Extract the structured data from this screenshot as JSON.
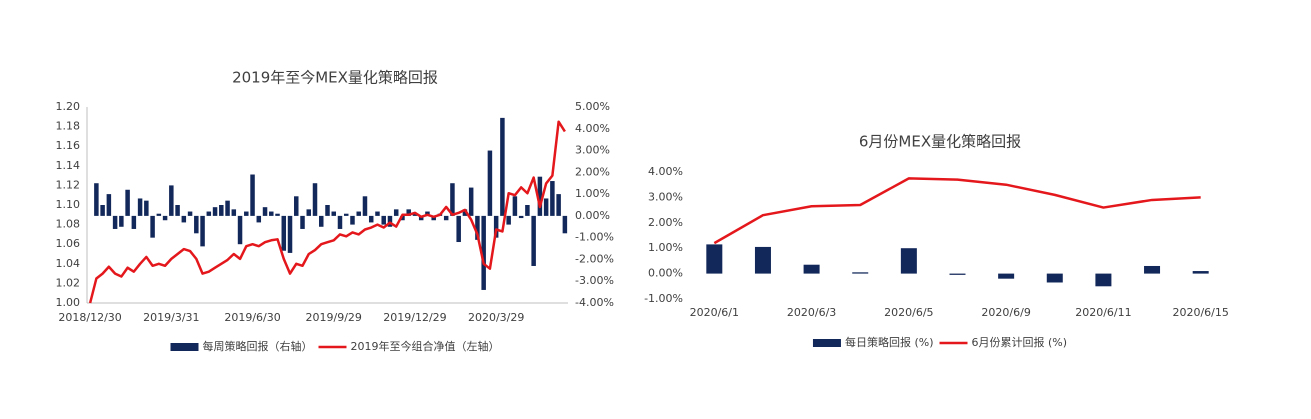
{
  "chart_data": [
    {
      "type": "combo",
      "title": "2019年至今MEX量化策略回报",
      "categories": [
        "2018/12/30",
        null,
        null,
        null,
        null,
        null,
        null,
        null,
        null,
        null,
        null,
        null,
        null,
        "2019/3/31",
        null,
        null,
        null,
        null,
        null,
        null,
        null,
        null,
        null,
        null,
        null,
        null,
        "2019/6/30",
        null,
        null,
        null,
        null,
        null,
        null,
        null,
        null,
        null,
        null,
        null,
        null,
        "2019/9/29",
        null,
        null,
        null,
        null,
        null,
        null,
        null,
        null,
        null,
        null,
        null,
        null,
        "2019/12/29",
        null,
        null,
        null,
        null,
        null,
        null,
        null,
        null,
        null,
        null,
        null,
        null,
        "2020/3/29",
        null,
        null,
        null,
        null,
        null,
        null,
        null,
        null,
        null,
        null,
        null
      ],
      "series": [
        {
          "name": "每周策略回报（右轴）",
          "type": "bar",
          "axis": "y2",
          "color": "#13285a",
          "values": [
            0,
            1.5,
            0.5,
            1.0,
            -0.6,
            -0.5,
            1.2,
            -0.6,
            0.8,
            0.7,
            -1.0,
            0.1,
            -0.2,
            1.4,
            0.5,
            -0.3,
            0.2,
            -0.8,
            -1.4,
            0.2,
            0.4,
            0.5,
            0.7,
            0.3,
            -1.3,
            0.2,
            1.9,
            -0.3,
            0.4,
            0.2,
            0.1,
            -1.6,
            -1.7,
            0.9,
            -0.6,
            0.3,
            1.5,
            -0.5,
            0.5,
            0.2,
            -0.6,
            0.1,
            -0.4,
            0.2,
            0.9,
            -0.3,
            0.2,
            -0.4,
            -0.5,
            0.3,
            -0.2,
            0.3,
            0.1,
            -0.2,
            0.2,
            -0.2,
            0.1,
            -0.2,
            1.5,
            -1.2,
            0.3,
            1.3,
            -1.1,
            -3.4,
            3.0,
            -1.0,
            4.5,
            -0.4,
            0.9,
            -0.1,
            0.5,
            -2.3,
            1.8,
            0.8,
            1.6,
            1.0,
            -0.8
          ]
        },
        {
          "name": "2019年至今组合净值（左轴）",
          "type": "line",
          "axis": "y",
          "color": "#e4181c",
          "values": [
            1.0,
            1.025,
            1.03,
            1.037,
            1.03,
            1.027,
            1.036,
            1.032,
            1.04,
            1.047,
            1.038,
            1.04,
            1.038,
            1.045,
            1.05,
            1.055,
            1.053,
            1.045,
            1.03,
            1.032,
            1.036,
            1.04,
            1.044,
            1.05,
            1.045,
            1.058,
            1.06,
            1.058,
            1.062,
            1.064,
            1.065,
            1.045,
            1.03,
            1.04,
            1.038,
            1.05,
            1.054,
            1.06,
            1.062,
            1.064,
            1.07,
            1.068,
            1.072,
            1.07,
            1.075,
            1.077,
            1.08,
            1.077,
            1.082,
            1.078,
            1.09,
            1.09,
            1.092,
            1.088,
            1.09,
            1.088,
            1.09,
            1.098,
            1.09,
            1.092,
            1.095,
            1.085,
            1.07,
            1.04,
            1.035,
            1.075,
            1.073,
            1.112,
            1.11,
            1.118,
            1.112,
            1.128,
            1.098,
            1.122,
            1.13,
            1.185,
            1.175
          ]
        }
      ],
      "ylim": [
        1.0,
        1.2
      ],
      "yticks": [
        {
          "value": 1.0,
          "label": "1.00"
        },
        {
          "value": 1.02,
          "label": "1.02"
        },
        {
          "value": 1.04,
          "label": "1.04"
        },
        {
          "value": 1.06,
          "label": "1.06"
        },
        {
          "value": 1.08,
          "label": "1.08"
        },
        {
          "value": 1.1,
          "label": "1.10"
        },
        {
          "value": 1.12,
          "label": "1.12"
        },
        {
          "value": 1.14,
          "label": "1.14"
        },
        {
          "value": 1.16,
          "label": "1.16"
        },
        {
          "value": 1.18,
          "label": "1.18"
        },
        {
          "value": 1.2,
          "label": "1.20"
        }
      ],
      "y2lim": [
        -4,
        5
      ],
      "y2ticks": [
        {
          "value": -4,
          "label": "-4.00%"
        },
        {
          "value": -3,
          "label": "-3.00%"
        },
        {
          "value": -2,
          "label": "-2.00%"
        },
        {
          "value": -1,
          "label": "-1.00%"
        },
        {
          "value": 0,
          "label": "0.00%"
        },
        {
          "value": 1,
          "label": "1.00%"
        },
        {
          "value": 2,
          "label": "2.00%"
        },
        {
          "value": 3,
          "label": "3.00%"
        },
        {
          "value": 4,
          "label": "4.00%"
        },
        {
          "value": 5,
          "label": "5.00%"
        }
      ]
    },
    {
      "type": "combo",
      "title": "6月份MEX量化策略回报",
      "categories": [
        "2020/6/1",
        null,
        "2020/6/3",
        null,
        "2020/6/5",
        null,
        "2020/6/9",
        null,
        "2020/6/11",
        null,
        "2020/6/15"
      ],
      "series": [
        {
          "name": "每日策略回报 (%)",
          "type": "bar",
          "axis": "y",
          "color": "#13285a",
          "values": [
            1.15,
            1.05,
            0.35,
            0.05,
            1.0,
            -0.05,
            -0.2,
            -0.35,
            -0.5,
            0.3,
            0.1
          ]
        },
        {
          "name": "6月份累计回报 (%)",
          "type": "line",
          "axis": "y",
          "color": "#e4181c",
          "values": [
            1.2,
            2.3,
            2.65,
            2.7,
            3.75,
            3.7,
            3.5,
            3.1,
            2.6,
            2.9,
            3.0
          ]
        }
      ],
      "ylim": [
        -1,
        4
      ],
      "yticks": [
        {
          "value": -1,
          "label": "-1.00%"
        },
        {
          "value": 0,
          "label": "0.00%"
        },
        {
          "value": 1,
          "label": "1.00%"
        },
        {
          "value": 2,
          "label": "2.00%"
        },
        {
          "value": 3,
          "label": "3.00%"
        },
        {
          "value": 4,
          "label": "4.00%"
        }
      ]
    }
  ]
}
